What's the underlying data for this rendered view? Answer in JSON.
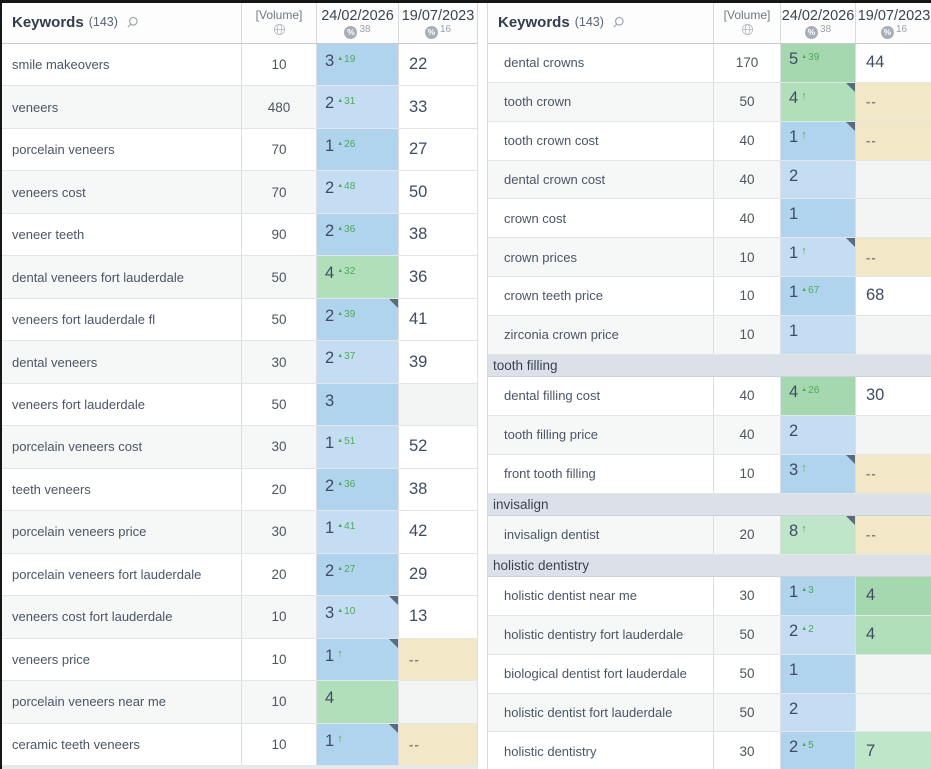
{
  "glyphs": {
    "percent": "%",
    "up_triangle": "▲",
    "up_arrow": "↑"
  },
  "colors": {
    "position_blue": "#b0d3ee",
    "position_blue_alt": "#c4ddf3",
    "position_green": "#a5d8ae",
    "position_green_alt": "#b1dfba",
    "position_green_light": "#bfe6c9",
    "lost_tan": "#f2e8c8",
    "empty_gray": "#f3f4f4",
    "change_green": "#4fa959",
    "flag_corner": "#5a6b7e",
    "group_bg": "#dce1e9"
  },
  "left": {
    "header": {
      "title": "Keywords",
      "count": "(143)",
      "volume": "[Volume]",
      "col1_date": "24/02/2026",
      "col1_visibility": "38",
      "col2_date": "19/07/2023",
      "col2_visibility": "16"
    },
    "rows": [
      {
        "type": "kw",
        "keyword": "smile makeovers",
        "volume": "10",
        "pos": "3",
        "change": "19",
        "change_type": "delta",
        "pos_bg": "blue1",
        "old": "22",
        "old_bg": "white",
        "flag": false
      },
      {
        "type": "kw",
        "keyword": "veneers",
        "volume": "480",
        "pos": "2",
        "change": "31",
        "change_type": "delta",
        "pos_bg": "blue2",
        "old": "33",
        "old_bg": "white",
        "flag": false
      },
      {
        "type": "kw",
        "keyword": "porcelain veneers",
        "volume": "70",
        "pos": "1",
        "change": "26",
        "change_type": "delta",
        "pos_bg": "blue1",
        "old": "27",
        "old_bg": "white",
        "flag": false
      },
      {
        "type": "kw",
        "keyword": "veneers cost",
        "volume": "70",
        "pos": "2",
        "change": "48",
        "change_type": "delta",
        "pos_bg": "blue2",
        "old": "50",
        "old_bg": "white",
        "flag": false
      },
      {
        "type": "kw",
        "keyword": "veneer teeth",
        "volume": "90",
        "pos": "2",
        "change": "36",
        "change_type": "delta",
        "pos_bg": "blue1",
        "old": "38",
        "old_bg": "white",
        "flag": false
      },
      {
        "type": "kw",
        "keyword": "dental veneers fort lauderdale",
        "volume": "50",
        "pos": "4",
        "change": "32",
        "change_type": "delta",
        "pos_bg": "green2",
        "old": "36",
        "old_bg": "white",
        "flag": false
      },
      {
        "type": "kw",
        "keyword": "veneers fort lauderdale fl",
        "volume": "50",
        "pos": "2",
        "change": "39",
        "change_type": "delta",
        "pos_bg": "blue1",
        "old": "41",
        "old_bg": "white",
        "flag": true
      },
      {
        "type": "kw",
        "keyword": "dental veneers",
        "volume": "30",
        "pos": "2",
        "change": "37",
        "change_type": "delta",
        "pos_bg": "blue2",
        "old": "39",
        "old_bg": "white",
        "flag": false
      },
      {
        "type": "kw",
        "keyword": "veneers fort lauderdale",
        "volume": "50",
        "pos": "3",
        "change": "",
        "change_type": "none",
        "pos_bg": "blue1",
        "old": "",
        "old_bg": "empty",
        "flag": false
      },
      {
        "type": "kw",
        "keyword": "porcelain veneers cost",
        "volume": "30",
        "pos": "1",
        "change": "51",
        "change_type": "delta",
        "pos_bg": "blue2",
        "old": "52",
        "old_bg": "white",
        "flag": false
      },
      {
        "type": "kw",
        "keyword": "teeth veneers",
        "volume": "20",
        "pos": "2",
        "change": "36",
        "change_type": "delta",
        "pos_bg": "blue1",
        "old": "38",
        "old_bg": "white",
        "flag": false
      },
      {
        "type": "kw",
        "keyword": "porcelain veneers price",
        "volume": "30",
        "pos": "1",
        "change": "41",
        "change_type": "delta",
        "pos_bg": "blue2",
        "old": "42",
        "old_bg": "white",
        "flag": false
      },
      {
        "type": "kw",
        "keyword": "porcelain veneers fort lauderdale",
        "volume": "20",
        "pos": "2",
        "change": "27",
        "change_type": "delta",
        "pos_bg": "blue1",
        "old": "29",
        "old_bg": "white",
        "flag": false
      },
      {
        "type": "kw",
        "keyword": "veneers cost fort lauderdale",
        "volume": "10",
        "pos": "3",
        "change": "10",
        "change_type": "delta",
        "pos_bg": "blue2",
        "old": "13",
        "old_bg": "white",
        "flag": true
      },
      {
        "type": "kw",
        "keyword": "veneers price",
        "volume": "10",
        "pos": "1",
        "change": "",
        "change_type": "up",
        "pos_bg": "blue1",
        "old": "--",
        "old_bg": "tan",
        "flag": true
      },
      {
        "type": "kw",
        "keyword": "porcelain veneers near me",
        "volume": "10",
        "pos": "4",
        "change": "",
        "change_type": "none",
        "pos_bg": "green2",
        "old": "",
        "old_bg": "empty",
        "flag": false
      },
      {
        "type": "kw",
        "keyword": "ceramic teeth veneers",
        "volume": "10",
        "pos": "1",
        "change": "",
        "change_type": "up",
        "pos_bg": "blue1",
        "old": "--",
        "old_bg": "tan",
        "flag": true
      }
    ]
  },
  "right": {
    "header": {
      "title": "Keywords",
      "count": "(143)",
      "volume": "[Volume]",
      "col1_date": "24/02/2026",
      "col1_visibility": "38",
      "col2_date": "19/07/2023",
      "col2_visibility": "16"
    },
    "rows": [
      {
        "type": "kw",
        "keyword": "dental crowns",
        "volume": "170",
        "pos": "5",
        "change": "39",
        "change_type": "delta",
        "pos_bg": "green1",
        "old": "44",
        "old_bg": "white",
        "flag": false
      },
      {
        "type": "kw",
        "keyword": "tooth crown",
        "volume": "50",
        "pos": "4",
        "change": "",
        "change_type": "up",
        "pos_bg": "green2",
        "old": "--",
        "old_bg": "tan",
        "flag": true
      },
      {
        "type": "kw",
        "keyword": "tooth crown cost",
        "volume": "40",
        "pos": "1",
        "change": "",
        "change_type": "up",
        "pos_bg": "blue1",
        "old": "--",
        "old_bg": "tan",
        "flag": true
      },
      {
        "type": "kw",
        "keyword": "dental crown cost",
        "volume": "40",
        "pos": "2",
        "change": "",
        "change_type": "none",
        "pos_bg": "blue2",
        "old": "",
        "old_bg": "empty",
        "flag": false
      },
      {
        "type": "kw",
        "keyword": "crown cost",
        "volume": "40",
        "pos": "1",
        "change": "",
        "change_type": "none",
        "pos_bg": "blue1",
        "old": "",
        "old_bg": "empty",
        "flag": false
      },
      {
        "type": "kw",
        "keyword": "crown prices",
        "volume": "10",
        "pos": "1",
        "change": "",
        "change_type": "up",
        "pos_bg": "blue2",
        "old": "--",
        "old_bg": "tan",
        "flag": true
      },
      {
        "type": "kw",
        "keyword": "crown teeth price",
        "volume": "10",
        "pos": "1",
        "change": "67",
        "change_type": "delta",
        "pos_bg": "blue1",
        "old": "68",
        "old_bg": "white",
        "flag": false
      },
      {
        "type": "kw",
        "keyword": "zirconia crown price",
        "volume": "10",
        "pos": "1",
        "change": "",
        "change_type": "none",
        "pos_bg": "blue2",
        "old": "",
        "old_bg": "empty",
        "flag": false
      },
      {
        "type": "group",
        "label": "tooth filling"
      },
      {
        "type": "kw",
        "keyword": "dental filling cost",
        "volume": "40",
        "pos": "4",
        "change": "26",
        "change_type": "delta",
        "pos_bg": "green1",
        "old": "30",
        "old_bg": "white",
        "flag": false
      },
      {
        "type": "kw",
        "keyword": "tooth filling price",
        "volume": "40",
        "pos": "2",
        "change": "",
        "change_type": "none",
        "pos_bg": "blue2",
        "old": "",
        "old_bg": "empty",
        "flag": false
      },
      {
        "type": "kw",
        "keyword": "front tooth filling",
        "volume": "10",
        "pos": "3",
        "change": "",
        "change_type": "up",
        "pos_bg": "blue1",
        "old": "--",
        "old_bg": "tan",
        "flag": true
      },
      {
        "type": "group",
        "label": "invisalign"
      },
      {
        "type": "kw",
        "keyword": "invisalign dentist",
        "volume": "20",
        "pos": "8",
        "change": "",
        "change_type": "up",
        "pos_bg": "greenLight",
        "old": "--",
        "old_bg": "tan",
        "flag": true
      },
      {
        "type": "group",
        "label": "holistic dentistry"
      },
      {
        "type": "kw",
        "keyword": "holistic dentist near me",
        "volume": "30",
        "pos": "1",
        "change": "3",
        "change_type": "delta",
        "pos_bg": "blue1",
        "old": "4",
        "old_bg": "green1",
        "flag": false
      },
      {
        "type": "kw",
        "keyword": "holistic dentistry fort lauderdale",
        "volume": "50",
        "pos": "2",
        "change": "2",
        "change_type": "delta",
        "pos_bg": "blue2",
        "old": "4",
        "old_bg": "green2",
        "flag": false
      },
      {
        "type": "kw",
        "keyword": "biological dentist fort lauderdale",
        "volume": "50",
        "pos": "1",
        "change": "",
        "change_type": "none",
        "pos_bg": "blue1",
        "old": "",
        "old_bg": "empty",
        "flag": false
      },
      {
        "type": "kw",
        "keyword": "holistic dentist fort lauderdale",
        "volume": "50",
        "pos": "2",
        "change": "",
        "change_type": "none",
        "pos_bg": "blue2",
        "old": "",
        "old_bg": "empty",
        "flag": false
      },
      {
        "type": "kw",
        "keyword": "holistic dentistry",
        "volume": "30",
        "pos": "2",
        "change": "5",
        "change_type": "delta",
        "pos_bg": "blue1",
        "old": "7",
        "old_bg": "greenLight",
        "flag": false
      }
    ]
  }
}
